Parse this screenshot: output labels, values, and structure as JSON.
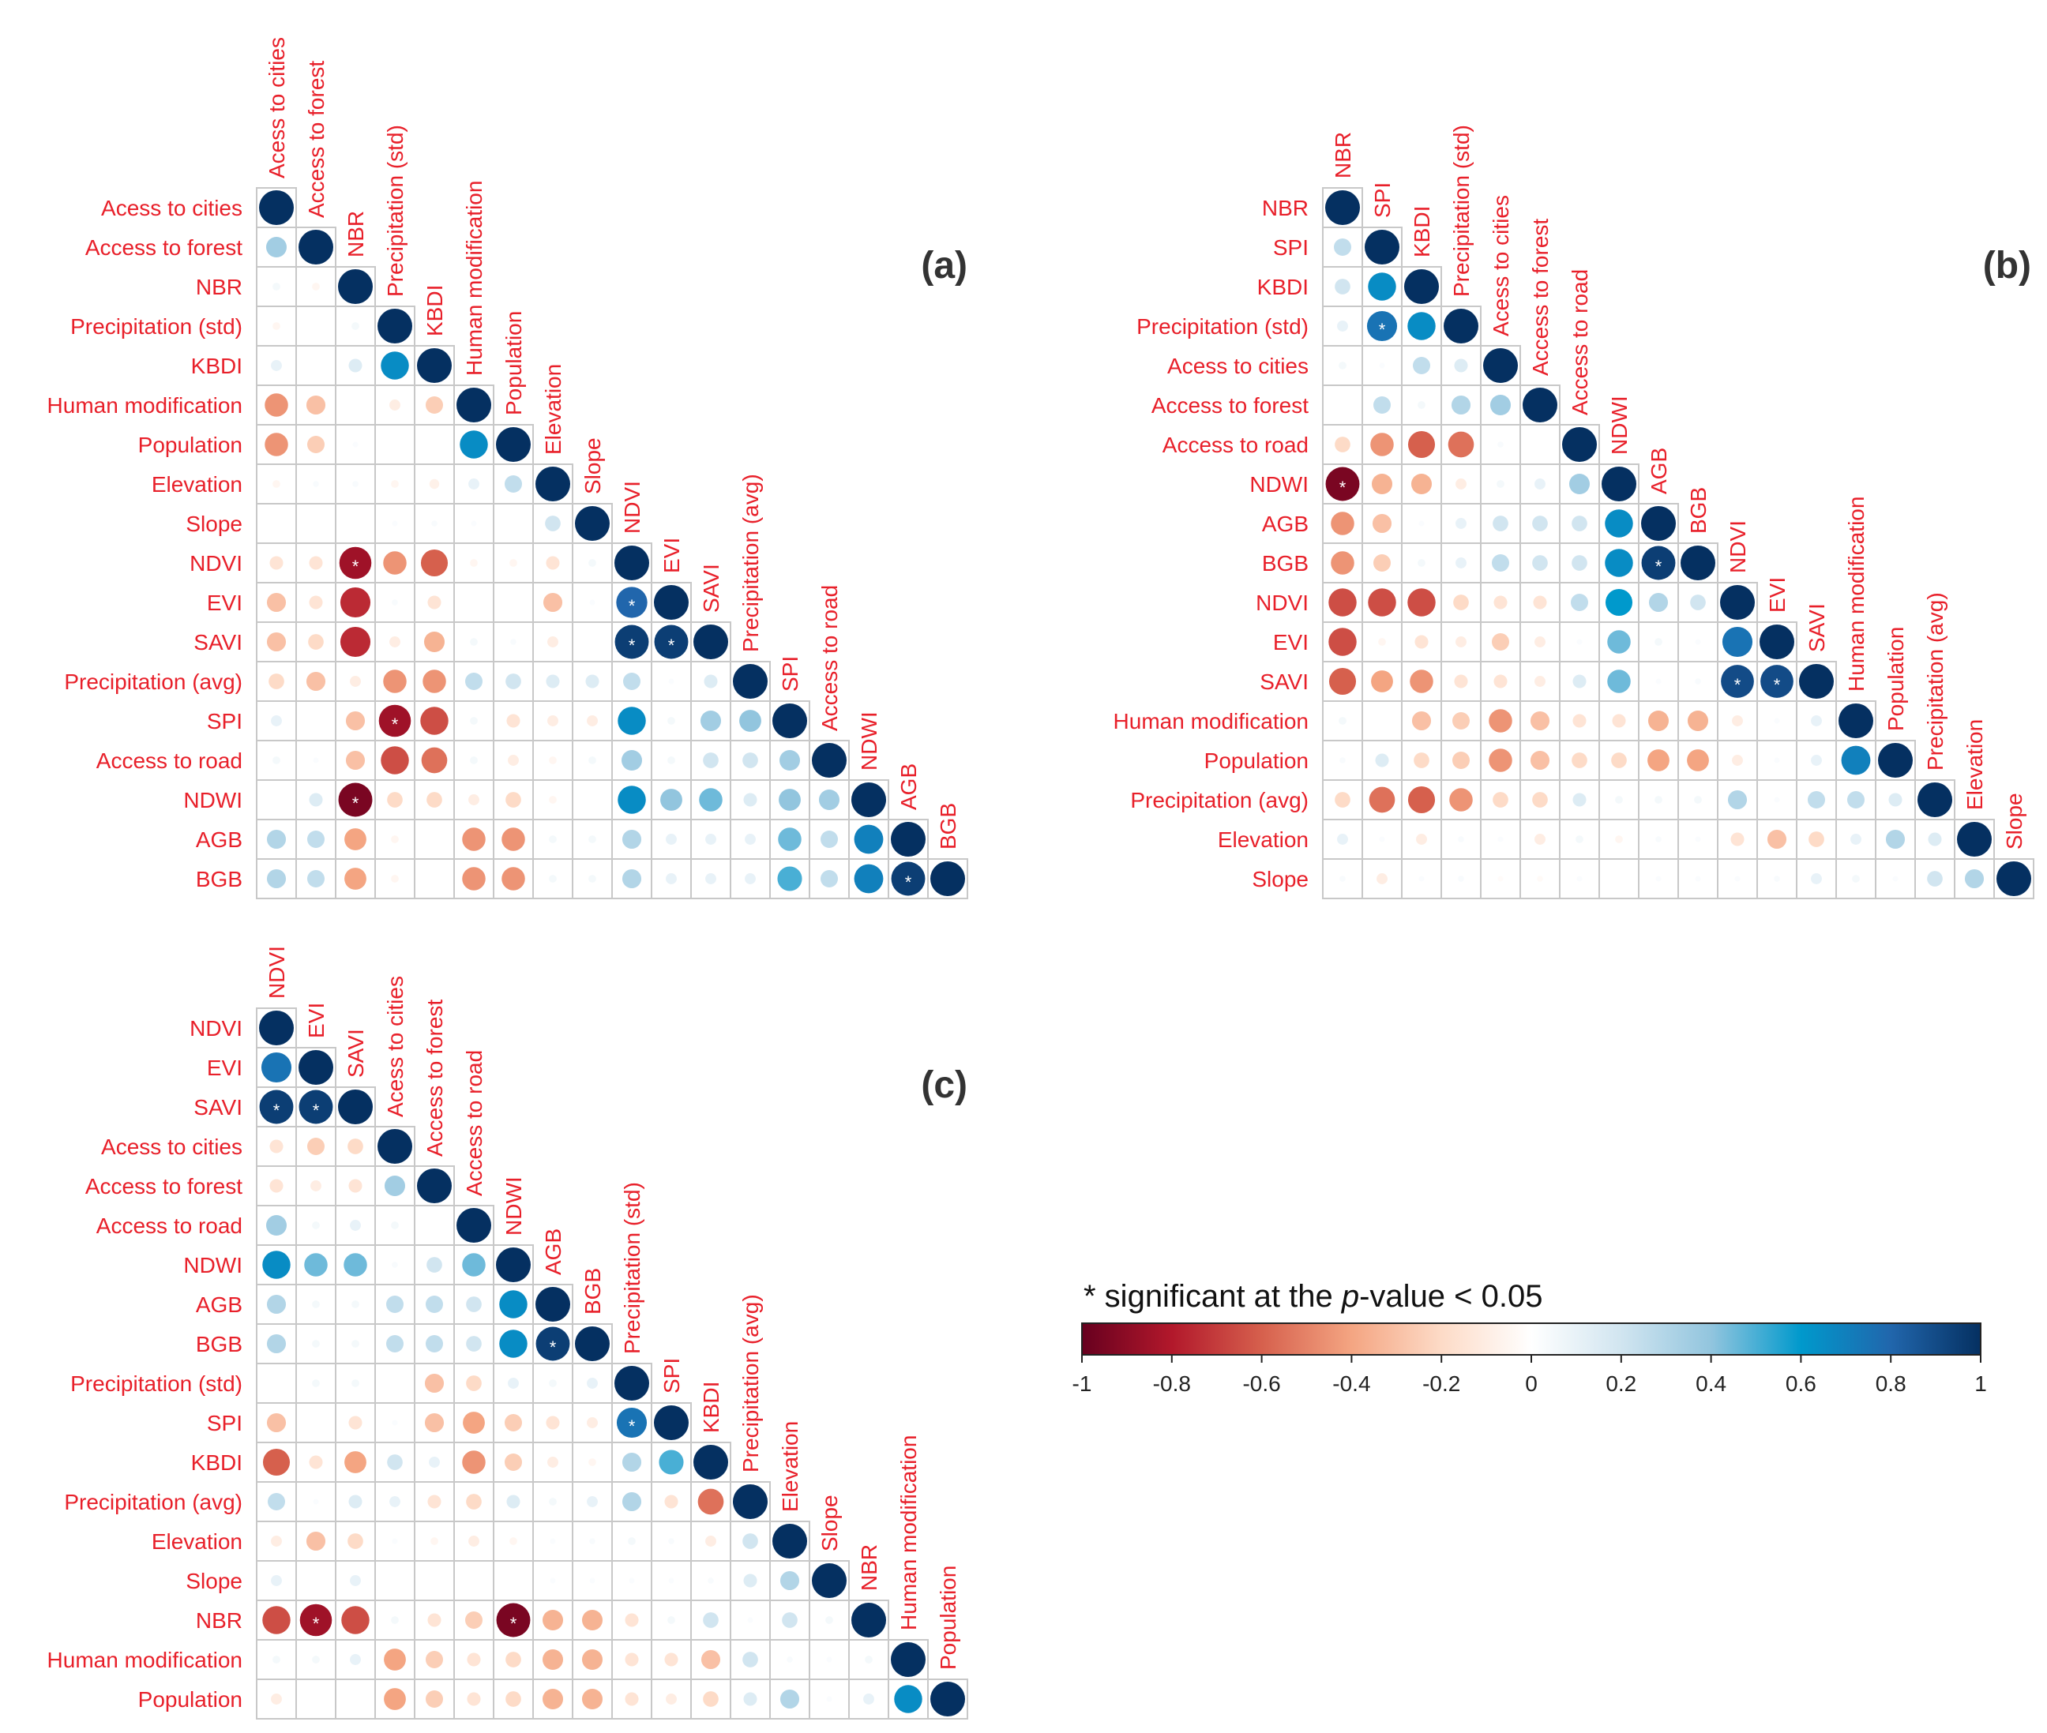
{
  "chart_data": [
    {
      "type": "heatmap",
      "subtype": "correlation-circle-lower",
      "panel_label": "(a)",
      "variables": [
        "Acess to cities",
        "Access to forest",
        "NBR",
        "Precipitation (std)",
        "KBDI",
        "Human modification",
        "Population",
        "Elevation",
        "Slope",
        "NDVI",
        "EVI",
        "SAVI",
        "Precipitation (avg)",
        "SPI",
        "Access to road",
        "NDWI",
        "AGB",
        "BGB"
      ],
      "lower_triangle": [
        [],
        [
          0.35
        ],
        [
          0.05,
          -0.05
        ],
        [
          -0.05,
          0,
          0.05
        ],
        [
          0.1,
          0,
          0.15,
          0.65
        ],
        [
          -0.45,
          -0.3,
          0,
          -0.1,
          -0.25
        ],
        [
          -0.45,
          -0.25,
          0.02,
          0,
          0,
          0.65
        ],
        [
          -0.05,
          0.03,
          0.03,
          -0.05,
          -0.08,
          0.1,
          0.25
        ],
        [
          0,
          0,
          0,
          0.02,
          0.03,
          0.02,
          0,
          0.2
        ],
        [
          -0.15,
          -0.15,
          -0.85,
          -0.45,
          -0.6,
          -0.05,
          -0.05,
          -0.15,
          0.05
        ],
        [
          -0.3,
          -0.15,
          -0.75,
          0.03,
          -0.15,
          0,
          0,
          -0.3,
          0.02,
          0.8
        ],
        [
          -0.3,
          -0.2,
          -0.75,
          -0.1,
          -0.35,
          0.05,
          0.03,
          -0.1,
          0,
          0.95,
          0.95
        ],
        [
          -0.2,
          -0.3,
          -0.1,
          -0.45,
          -0.45,
          0.25,
          0.2,
          0.15,
          0.15,
          0.25,
          0.02,
          0.15
        ],
        [
          0.1,
          0,
          -0.3,
          -0.85,
          -0.65,
          0.05,
          -0.15,
          -0.1,
          -0.1,
          0.65,
          0.05,
          0.35,
          0.4
        ],
        [
          0.05,
          0.02,
          -0.3,
          -0.65,
          -0.55,
          0.05,
          -0.1,
          -0.05,
          0.05,
          0.35,
          0.05,
          0.2,
          0.2,
          0.35
        ],
        [
          0,
          0.15,
          -0.95,
          -0.2,
          -0.2,
          -0.1,
          -0.2,
          -0.05,
          0,
          0.65,
          0.4,
          0.45,
          0.15,
          0.4,
          0.35
        ],
        [
          0.3,
          0.25,
          -0.4,
          -0.05,
          0,
          -0.45,
          -0.45,
          0.05,
          0.05,
          0.3,
          0.1,
          0.1,
          0.1,
          0.45,
          0.25,
          0.7
        ],
        [
          0.3,
          0.25,
          -0.4,
          -0.05,
          0,
          -0.45,
          -0.45,
          0.05,
          0.05,
          0.3,
          0.1,
          0.1,
          0.1,
          0.5,
          0.25,
          0.7,
          0.95
        ]
      ],
      "significant": [
        [
          10,
          9
        ],
        [
          11,
          9
        ],
        [
          11,
          10
        ],
        [
          13,
          3
        ],
        [
          15,
          2
        ],
        [
          17,
          16
        ],
        [
          9,
          2
        ]
      ]
    },
    {
      "type": "heatmap",
      "subtype": "correlation-circle-lower",
      "panel_label": "(b)",
      "variables": [
        "NBR",
        "SPI",
        "KBDI",
        "Precipitation (std)",
        "Acess to cities",
        "Access to forest",
        "Access to road",
        "NDWI",
        "AGB",
        "BGB",
        "NDVI",
        "EVI",
        "SAVI",
        "Human modification",
        "Population",
        "Precipitation (avg)",
        "Elevation",
        "Slope"
      ],
      "lower_triangle": [
        [],
        [
          0.25
        ],
        [
          0.2,
          0.65
        ],
        [
          0.1,
          0.75,
          0.65
        ],
        [
          0.05,
          0.02,
          0.25,
          0.15
        ],
        [
          0,
          0.25,
          0.05,
          0.3,
          0.35
        ],
        [
          -0.2,
          -0.45,
          -0.6,
          -0.55,
          0.03,
          0
        ],
        [
          -0.95,
          -0.35,
          -0.35,
          -0.1,
          0.05,
          0.1,
          0.35
        ],
        [
          -0.45,
          -0.3,
          0.02,
          0.1,
          0.2,
          0.2,
          0.2,
          0.65
        ],
        [
          -0.45,
          -0.25,
          0.05,
          0.1,
          0.25,
          0.2,
          0.2,
          0.65,
          0.95
        ],
        [
          -0.65,
          -0.65,
          -0.65,
          -0.2,
          -0.15,
          -0.15,
          0.25,
          0.6,
          0.3,
          0.2
        ],
        [
          -0.65,
          -0.05,
          -0.15,
          -0.1,
          -0.25,
          -0.1,
          0.02,
          0.45,
          0.05,
          0.02,
          0.75
        ],
        [
          -0.6,
          -0.4,
          -0.45,
          -0.15,
          -0.15,
          -0.1,
          0.15,
          0.45,
          0.02,
          0.03,
          0.9,
          0.9
        ],
        [
          0.05,
          0,
          -0.3,
          -0.25,
          -0.45,
          -0.3,
          -0.15,
          -0.15,
          -0.35,
          -0.35,
          -0.1,
          0.02,
          0.1
        ],
        [
          0.03,
          0.15,
          -0.2,
          -0.25,
          -0.45,
          -0.3,
          -0.2,
          -0.2,
          -0.4,
          -0.4,
          -0.1,
          0.02,
          0.1,
          0.7
        ],
        [
          -0.2,
          -0.55,
          -0.6,
          -0.45,
          -0.2,
          -0.2,
          0.15,
          0.05,
          0.05,
          0.05,
          0.3,
          0.02,
          0.25,
          0.25,
          0.15
        ],
        [
          0.1,
          0.02,
          -0.1,
          0.03,
          0.02,
          -0.1,
          0.05,
          -0.05,
          0.03,
          0.02,
          -0.15,
          -0.3,
          -0.2,
          0.1,
          0.3,
          0.15
        ],
        [
          0.03,
          -0.1,
          0.02,
          0.03,
          -0.02,
          -0.03,
          0.02,
          0,
          0.02,
          0.02,
          0.02,
          0.03,
          0.1,
          0.05,
          0.02,
          0.2,
          0.3
        ]
      ],
      "significant": [
        [
          3,
          1
        ],
        [
          7,
          0
        ],
        [
          9,
          8
        ],
        [
          12,
          10
        ],
        [
          12,
          11
        ]
      ]
    },
    {
      "type": "heatmap",
      "subtype": "correlation-circle-lower",
      "panel_label": "(c)",
      "variables": [
        "NDVI",
        "EVI",
        "SAVI",
        "Acess to cities",
        "Access to forest",
        "Access to road",
        "NDWI",
        "AGB",
        "BGB",
        "Precipitation (std)",
        "SPI",
        "KBDI",
        "Precipitation (avg)",
        "Elevation",
        "Slope",
        "NBR",
        "Human modification",
        "Population"
      ],
      "lower_triangle": [
        [],
        [
          0.75
        ],
        [
          0.95,
          0.95
        ],
        [
          -0.15,
          -0.25,
          -0.2
        ],
        [
          -0.15,
          -0.1,
          -0.15,
          0.35
        ],
        [
          0.35,
          0.05,
          0.1,
          0.05,
          0
        ],
        [
          0.65,
          0.45,
          0.45,
          0.03,
          0.2,
          0.45
        ],
        [
          0.3,
          0.05,
          0.05,
          0.25,
          0.25,
          0.2,
          0.65
        ],
        [
          0.3,
          0.05,
          0.05,
          0.25,
          0.25,
          0.2,
          0.65,
          0.95
        ],
        [
          0,
          0.05,
          0.05,
          0,
          -0.3,
          -0.2,
          0.1,
          0.05,
          0.1
        ],
        [
          -0.3,
          0,
          -0.15,
          0.02,
          -0.3,
          -0.4,
          -0.25,
          -0.15,
          -0.1,
          0.75
        ],
        [
          -0.6,
          -0.15,
          -0.4,
          0.2,
          0.1,
          -0.45,
          -0.25,
          -0.1,
          -0.05,
          0.3,
          0.5
        ],
        [
          0.25,
          0.02,
          0.15,
          0.1,
          -0.15,
          -0.2,
          0.15,
          0.05,
          0.1,
          0.3,
          -0.15,
          -0.55
        ],
        [
          -0.1,
          -0.3,
          -0.2,
          0.02,
          -0.05,
          -0.1,
          -0.05,
          0.02,
          0.03,
          0.05,
          0.03,
          -0.1,
          0.2
        ],
        [
          0.1,
          0,
          0.1,
          0,
          0,
          0,
          0,
          0.02,
          0.02,
          0.02,
          0.02,
          0.03,
          0.15,
          0.3
        ],
        [
          -0.65,
          -0.85,
          -0.65,
          0.05,
          -0.15,
          -0.25,
          -0.95,
          -0.35,
          -0.35,
          -0.15,
          0.05,
          0.2,
          0.02,
          0.2,
          0.05
        ],
        [
          0.05,
          0.05,
          0.1,
          -0.4,
          -0.25,
          -0.15,
          -0.2,
          -0.35,
          -0.35,
          -0.15,
          -0.15,
          -0.3,
          0.2,
          0.03,
          0.02,
          0.05
        ],
        [
          -0.1,
          0,
          0,
          -0.4,
          -0.25,
          -0.15,
          -0.2,
          -0.35,
          -0.35,
          -0.15,
          -0.1,
          -0.2,
          0.15,
          0.3,
          0.02,
          0.1,
          0.65
        ]
      ],
      "significant": [
        [
          2,
          0
        ],
        [
          2,
          1
        ],
        [
          8,
          7
        ],
        [
          10,
          9
        ],
        [
          15,
          1
        ],
        [
          15,
          6
        ]
      ]
    }
  ],
  "legend": {
    "title_prefix": "* significant at the ",
    "title_italic": "p",
    "title_suffix": "-value < 0.05",
    "ticks": [
      "-1",
      "-0.8",
      "-0.6",
      "-0.4",
      "-0.2",
      "0",
      "0.2",
      "0.4",
      "0.6",
      "0.8",
      "1"
    ],
    "range": [
      -1,
      1
    ]
  },
  "colors": {
    "label": "#e8202a",
    "grid": "#c8c8c8",
    "stops": [
      "#67001f",
      "#b2182b",
      "#d6604d",
      "#f4a582",
      "#fddbc7",
      "#ffffff",
      "#d1e5f0",
      "#92c5de",
      "#0099cc",
      "#2166ac",
      "#053061"
    ]
  }
}
